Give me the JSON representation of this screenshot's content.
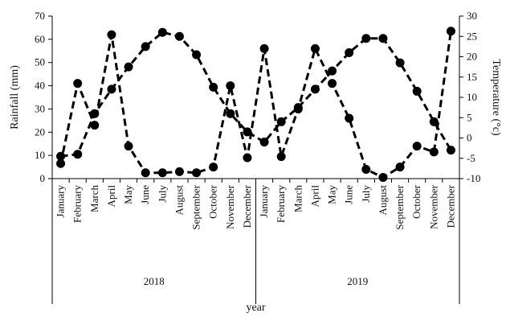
{
  "chart_data": {
    "type": "line",
    "title": "",
    "xlabel": "year",
    "ylabel": "Rainfall (mm)",
    "y2label": "Temperature (°c)",
    "ylim": [
      0,
      70
    ],
    "y2lim": [
      -10,
      30
    ],
    "yticks": [
      0,
      10,
      20,
      30,
      40,
      50,
      60,
      70
    ],
    "y2ticks": [
      -10,
      -5,
      0,
      5,
      10,
      15,
      20,
      25,
      30
    ],
    "grid": false,
    "legend": "none",
    "years": [
      "2018",
      "2019"
    ],
    "categories": [
      "January",
      "February",
      "March",
      "April",
      "May",
      "June",
      "July",
      "August",
      "September",
      "October",
      "November",
      "December",
      "January",
      "February",
      "March",
      "April",
      "May",
      "June",
      "July",
      "August",
      "September",
      "October",
      "November",
      "December"
    ],
    "series": [
      {
        "axis": "left",
        "style": "dashed",
        "color": "#000000",
        "values": [
          6.5,
          41,
          23,
          62,
          14,
          2.5,
          2.5,
          3,
          2.5,
          5,
          40,
          9,
          56,
          9.5,
          30,
          56,
          41,
          26,
          4,
          0.5,
          5,
          14,
          11.5,
          63.5
        ]
      },
      {
        "axis": "right",
        "style": "dashed",
        "color": "#000000",
        "values": [
          -4.5,
          -4,
          6,
          12,
          17.5,
          22.5,
          26,
          25,
          20.5,
          12.5,
          6,
          1.5,
          -1,
          4,
          7.5,
          12,
          16.5,
          21,
          24.5,
          24.5,
          18.5,
          11.5,
          4,
          -3
        ]
      }
    ]
  }
}
